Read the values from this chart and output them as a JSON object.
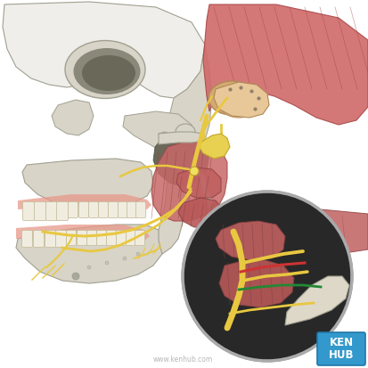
{
  "bg_color": "#ffffff",
  "watermark": "www.kenhub.com",
  "kenhub_box_color": "#3399cc",
  "kenhub_text": "KEN\nHUB",
  "skull_fill": "#d8d4c8",
  "skull_edge": "#a0a090",
  "skull_dark": "#9a9888",
  "skull_white": "#f0eeea",
  "muscle_pink": "#d47878",
  "muscle_dark": "#b85858",
  "muscle_light": "#e89898",
  "nerve_yellow": "#e8c840",
  "nerve_yellow2": "#d4b428",
  "nerve_red": "#cc3333",
  "nerve_green": "#228833",
  "tmj_tan": "#d4a870",
  "tmj_light": "#e8c898",
  "dark_fossa": "#404040",
  "zoom_bg": "#282828",
  "bone_cream": "#ddd8c8",
  "gum_pink": "#e8988a",
  "tooth_white": "#f0ede0",
  "tooth_edge": "#c8c0a0"
}
